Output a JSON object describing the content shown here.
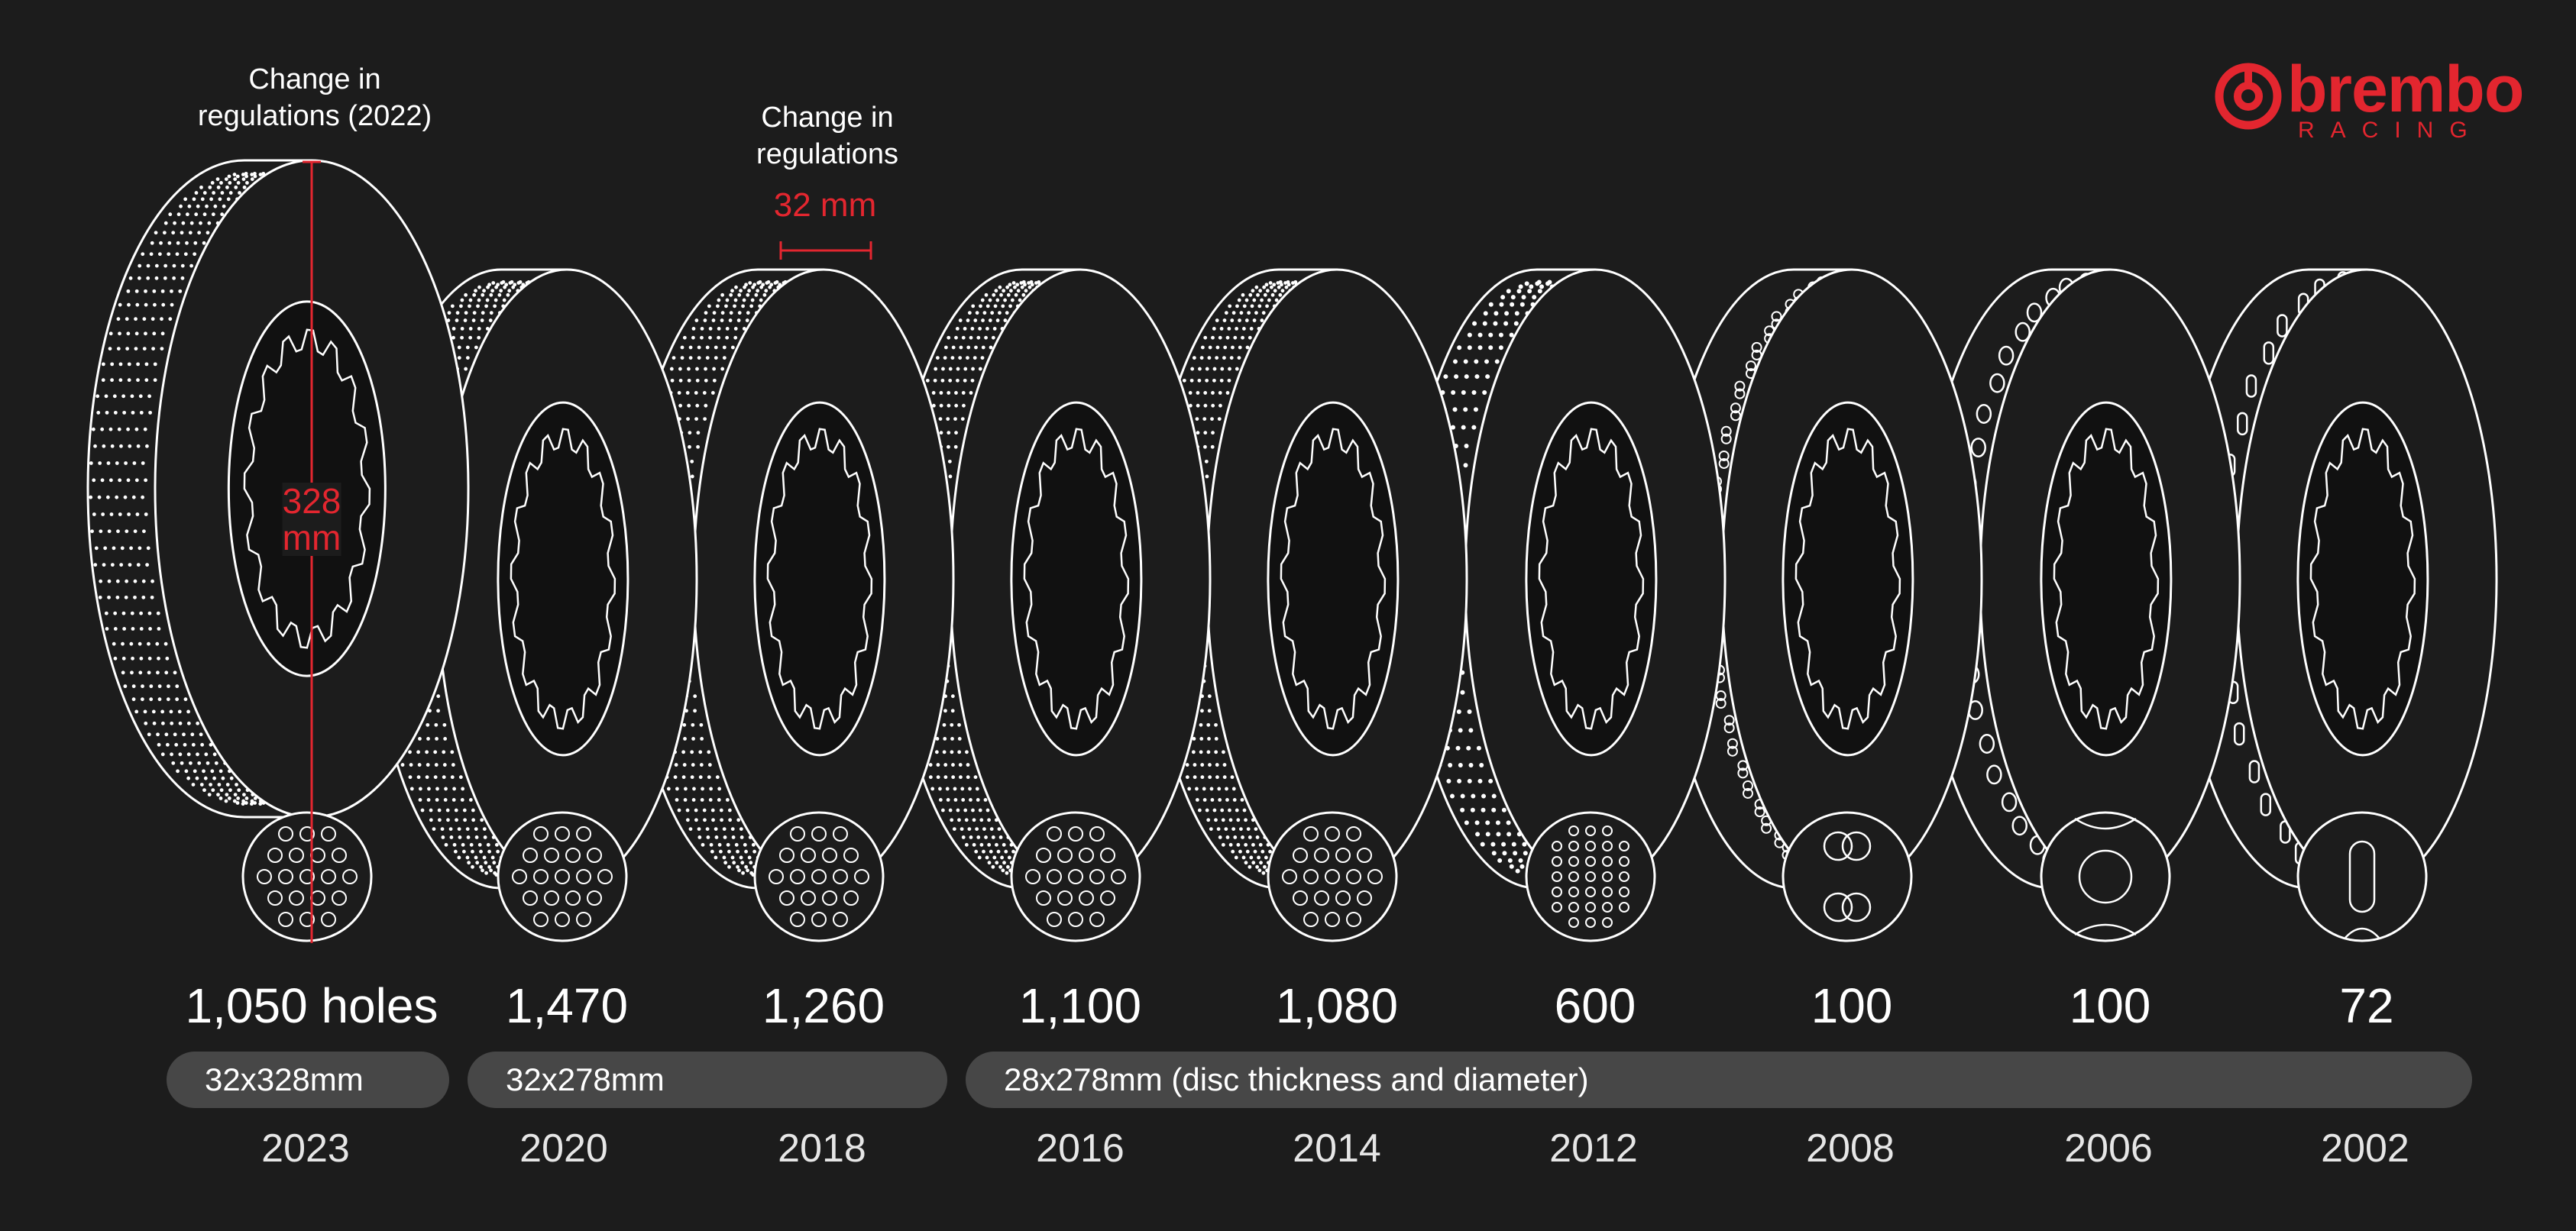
{
  "brand": {
    "name": "brembo",
    "sub": "RACING",
    "color": "#e3262f"
  },
  "annotations": {
    "reg2022_line1": "Change in",
    "reg2022_line2": "regulations (2022)",
    "reg_line1": "Change in",
    "reg_line2": "regulations",
    "thickness": "32 mm",
    "diameter_value": "328",
    "diameter_unit": "mm"
  },
  "discs": [
    {
      "year": "2023",
      "holes": "1,050 holes",
      "pattern": "holes"
    },
    {
      "year": "2020",
      "holes": "1,470",
      "pattern": "holes"
    },
    {
      "year": "2018",
      "holes": "1,260",
      "pattern": "holes"
    },
    {
      "year": "2016",
      "holes": "1,100",
      "pattern": "holes"
    },
    {
      "year": "2014",
      "holes": "1,080",
      "pattern": "holes"
    },
    {
      "year": "2012",
      "holes": "600",
      "pattern": "small-holes"
    },
    {
      "year": "2008",
      "holes": "100",
      "pattern": "double-holes"
    },
    {
      "year": "2006",
      "holes": "100",
      "pattern": "large-holes"
    },
    {
      "year": "2002",
      "holes": "72",
      "pattern": "slots"
    }
  ],
  "specs": [
    {
      "label": "32x328mm"
    },
    {
      "label": "32x278mm"
    },
    {
      "label": "28x278mm (disc thickness and diameter)"
    }
  ],
  "colors": {
    "background": "#1c1c1c",
    "line": "#ffffff",
    "accent": "#e3262f",
    "pill": "#474747"
  }
}
